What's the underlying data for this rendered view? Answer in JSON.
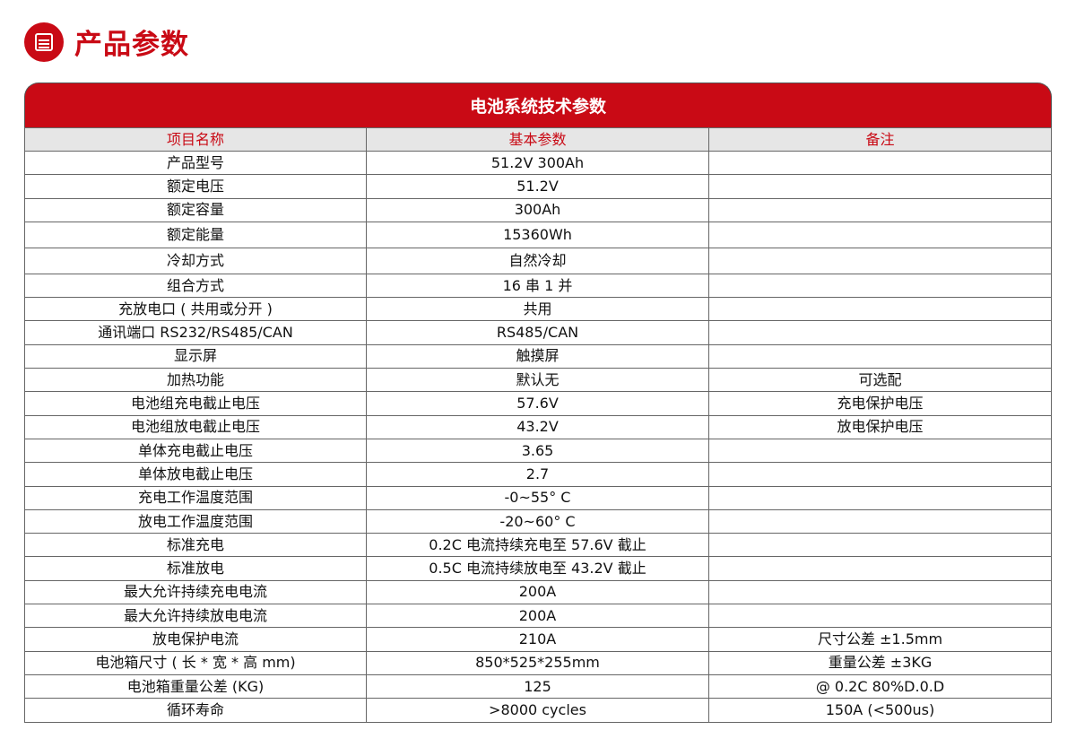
{
  "page": {
    "title": "产品参数",
    "icon": "document-list-icon"
  },
  "table": {
    "caption": "电池系统技术参数",
    "headers": [
      "项目名称",
      "基本参数",
      "备注"
    ],
    "rows": [
      [
        "产品型号",
        "51.2V 300Ah",
        ""
      ],
      [
        "额定电压",
        "51.2V",
        ""
      ],
      [
        "额定容量",
        "300Ah",
        ""
      ],
      [
        "额定能量",
        "15360Wh",
        ""
      ],
      [
        "冷却方式",
        "自然冷却",
        ""
      ],
      [
        "组合方式",
        "16 串 1 并",
        ""
      ],
      [
        "充放电口 ( 共用或分开 )",
        "共用",
        ""
      ],
      [
        "通讯端口 RS232/RS485/CAN",
        "RS485/CAN",
        ""
      ],
      [
        "显示屏",
        "触摸屏",
        ""
      ],
      [
        "加热功能",
        "默认无",
        "可选配"
      ],
      [
        "电池组充电截止电压",
        "57.6V",
        "充电保护电压"
      ],
      [
        "电池组放电截止电压",
        "43.2V",
        "放电保护电压"
      ],
      [
        "单体充电截止电压",
        "3.65",
        ""
      ],
      [
        "单体放电截止电压",
        "2.7",
        ""
      ],
      [
        "充电工作温度范围",
        "-0~55° C",
        ""
      ],
      [
        "放电工作温度范围",
        "-20~60° C",
        ""
      ],
      [
        "标准充电",
        "0.2C 电流持续充电至 57.6V 截止",
        ""
      ],
      [
        "标准放电",
        "0.5C 电流持续放电至 43.2V 截止",
        ""
      ],
      [
        "最大允许持续充电电流",
        "200A",
        ""
      ],
      [
        "最大允许持续放电电流",
        "200A",
        ""
      ],
      [
        "放电保护电流",
        "210A",
        "尺寸公差 ±1.5mm"
      ],
      [
        "电池箱尺寸 ( 长 * 宽 * 高 mm)",
        "850*525*255mm",
        "重量公差 ±3KG"
      ],
      [
        "电池箱重量公差 (KG)",
        "125",
        "@ 0.2C 80%D.0.D"
      ],
      [
        "循环寿命",
        ">8000 cycles",
        "150A (<500us)"
      ]
    ]
  }
}
